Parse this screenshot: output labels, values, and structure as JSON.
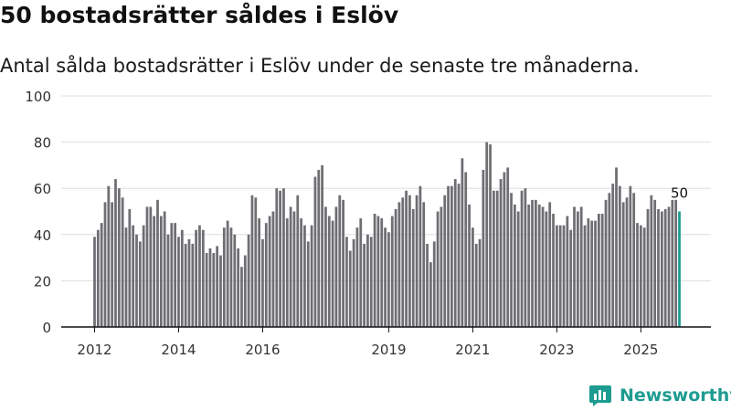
{
  "header": {
    "title": "50 bostadsrätter såldes i Eslöv",
    "subtitle": "Antal sålda bostadsrätter i Eslöv under de senaste tre månaderna."
  },
  "brand": {
    "name": "Newsworthy",
    "color": "#1d9b90"
  },
  "colors": {
    "bar": "#6e6e73",
    "highlight": "#1d9b90",
    "grid": "#dddddd",
    "text": "#333333"
  },
  "chart_data": {
    "type": "bar",
    "title": "50 bostadsrätter såldes i Eslöv",
    "subtitle": "Antal sålda bostadsrätter i Eslöv under de senaste tre månaderna.",
    "xlabel": "",
    "ylabel": "",
    "ylim": [
      0,
      100
    ],
    "yticks": [
      0,
      20,
      40,
      60,
      80,
      100
    ],
    "grid": true,
    "x_tick_labels": [
      {
        "label": "2012",
        "index": 0
      },
      {
        "label": "2014",
        "index": 24
      },
      {
        "label": "2016",
        "index": 48
      },
      {
        "label": "2019",
        "index": 84
      },
      {
        "label": "2021",
        "index": 108
      },
      {
        "label": "2023",
        "index": 132
      },
      {
        "label": "2025",
        "index": 156
      }
    ],
    "highlight_last": true,
    "last_value_label": "50",
    "values": [
      39,
      42,
      45,
      54,
      61,
      54,
      64,
      60,
      56,
      43,
      51,
      44,
      40,
      37,
      44,
      52,
      52,
      48,
      55,
      48,
      50,
      40,
      45,
      45,
      39,
      42,
      36,
      38,
      36,
      42,
      44,
      42,
      32,
      34,
      32,
      35,
      31,
      43,
      46,
      43,
      40,
      34,
      26,
      31,
      40,
      57,
      56,
      47,
      38,
      45,
      48,
      50,
      60,
      59,
      60,
      47,
      52,
      50,
      57,
      47,
      44,
      37,
      44,
      65,
      68,
      70,
      52,
      48,
      46,
      52,
      57,
      55,
      39,
      33,
      38,
      43,
      47,
      36,
      40,
      39,
      49,
      48,
      47,
      43,
      41,
      48,
      51,
      54,
      56,
      59,
      57,
      51,
      57,
      61,
      54,
      36,
      28,
      37,
      50,
      52,
      57,
      61,
      61,
      64,
      62,
      73,
      67,
      53,
      43,
      36,
      38,
      68,
      80,
      79,
      59,
      59,
      64,
      67,
      69,
      58,
      53,
      50,
      59,
      60,
      53,
      55,
      55,
      53,
      52,
      50,
      54,
      49,
      44,
      44,
      44,
      48,
      42,
      52,
      50,
      52,
      44,
      47,
      46,
      46,
      49,
      49,
      55,
      58,
      62,
      69,
      61,
      54,
      56,
      61,
      58,
      45,
      44,
      43,
      51,
      57,
      55,
      51,
      50,
      51,
      52,
      55,
      55,
      50
    ]
  }
}
